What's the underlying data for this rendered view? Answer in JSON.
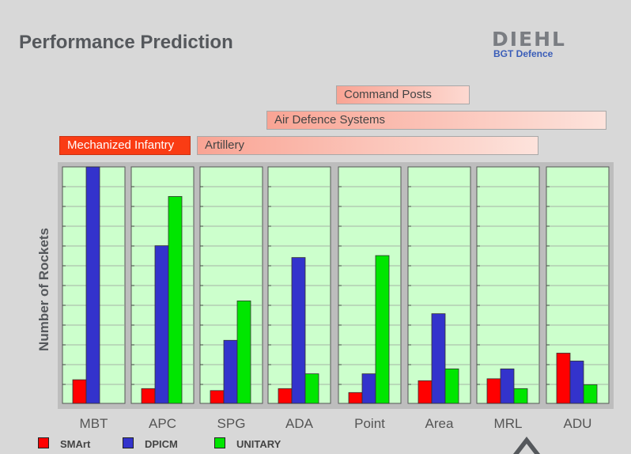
{
  "slide": {
    "title": "Performance Prediction"
  },
  "logo": {
    "brand": "DIEHL",
    "sub": "BGT Defence"
  },
  "target_bands": {
    "command_posts": "Command Posts",
    "air_defence": "Air Defence Systems",
    "artillery": "Artillery",
    "mechanized_infantry": "Mechanized Infantry"
  },
  "colors": {
    "smart": "#ff0000",
    "dpicm": "#3333cc",
    "unitary": "#00e600",
    "plot_bg": "#ccffcc",
    "band_mi": "#fa3c14"
  },
  "chart_data": {
    "type": "bar",
    "title": "",
    "xlabel": "",
    "ylabel": "Number of Rockets",
    "ylim": [
      0,
      12
    ],
    "grid": true,
    "categories": [
      "MBT",
      "APC",
      "SPG",
      "ADA",
      "Point",
      "Area",
      "MRL",
      "ADU"
    ],
    "series": [
      {
        "name": "SMArt",
        "values": [
          1.2,
          0.75,
          0.65,
          0.75,
          0.55,
          1.15,
          1.25,
          2.55
        ]
      },
      {
        "name": "DPICM",
        "values": [
          12,
          8.0,
          3.2,
          7.4,
          1.5,
          4.55,
          1.75,
          2.15
        ]
      },
      {
        "name": "UNITARY",
        "values": [
          0,
          10.5,
          5.2,
          1.5,
          7.5,
          1.75,
          0.75,
          0.95
        ]
      }
    ],
    "legend": "bottom-left"
  }
}
